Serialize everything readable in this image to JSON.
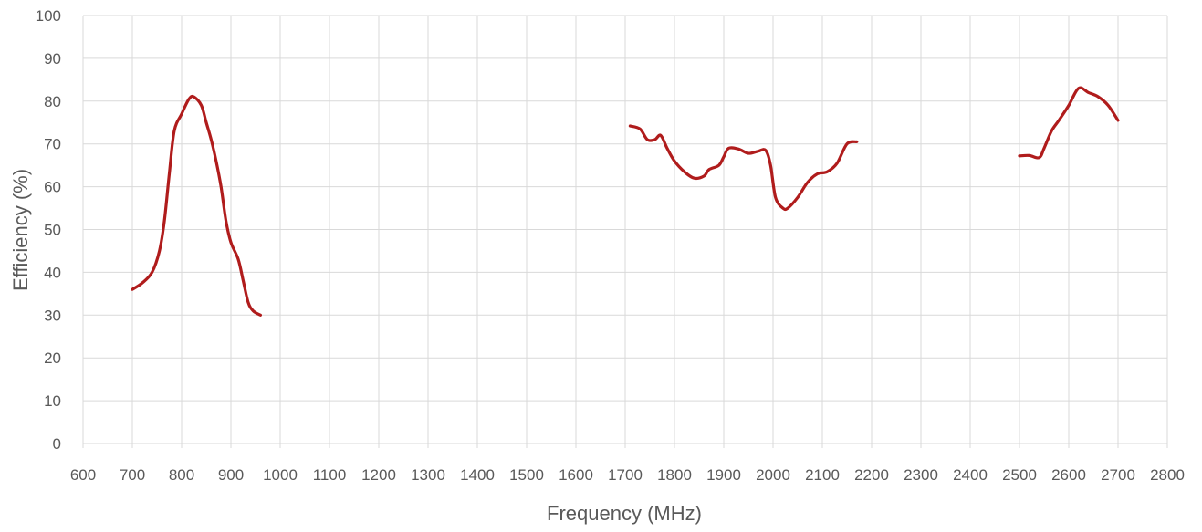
{
  "chart_data": {
    "type": "line",
    "title": "",
    "xlabel": "Frequency (MHz)",
    "ylabel": "Efficiency (%)",
    "xlim": [
      600,
      2800
    ],
    "ylim": [
      0,
      100
    ],
    "x_ticks": [
      600,
      700,
      800,
      900,
      1000,
      1100,
      1200,
      1300,
      1400,
      1500,
      1600,
      1700,
      1800,
      1900,
      2000,
      2100,
      2200,
      2300,
      2400,
      2500,
      2600,
      2700,
      2800
    ],
    "y_ticks": [
      0,
      10,
      20,
      30,
      40,
      50,
      60,
      70,
      80,
      90,
      100
    ],
    "grid": true,
    "legend": "none",
    "line_color": "#b01c1c",
    "series": [
      {
        "segments": [
          [
            [
              700,
              36
            ],
            [
              720,
              37.5
            ],
            [
              740,
              40
            ],
            [
              755,
              45
            ],
            [
              765,
              52
            ],
            [
              775,
              63
            ],
            [
              785,
              73
            ],
            [
              800,
              77
            ],
            [
              815,
              80.5
            ],
            [
              825,
              81
            ],
            [
              840,
              79
            ],
            [
              850,
              75
            ],
            [
              860,
              71
            ],
            [
              870,
              66
            ],
            [
              880,
              60
            ],
            [
              890,
              52
            ],
            [
              900,
              47
            ],
            [
              915,
              43
            ],
            [
              925,
              38
            ],
            [
              935,
              33
            ],
            [
              945,
              31
            ],
            [
              960,
              30
            ]
          ],
          [
            [
              1710,
              74.2
            ],
            [
              1730,
              73.5
            ],
            [
              1745,
              71
            ],
            [
              1760,
              71
            ],
            [
              1772,
              72
            ],
            [
              1785,
              69
            ],
            [
              1800,
              66
            ],
            [
              1820,
              63.5
            ],
            [
              1840,
              62
            ],
            [
              1860,
              62.5
            ],
            [
              1870,
              64
            ],
            [
              1890,
              65
            ],
            [
              1900,
              67
            ],
            [
              1910,
              69
            ],
            [
              1930,
              68.8
            ],
            [
              1950,
              67.8
            ],
            [
              1970,
              68.3
            ],
            [
              1985,
              68.5
            ],
            [
              1995,
              65
            ],
            [
              2005,
              57.5
            ],
            [
              2020,
              55
            ],
            [
              2030,
              55
            ],
            [
              2050,
              57.5
            ],
            [
              2070,
              61
            ],
            [
              2090,
              63
            ],
            [
              2110,
              63.5
            ],
            [
              2130,
              65.5
            ],
            [
              2150,
              70
            ],
            [
              2170,
              70.5
            ]
          ],
          [
            [
              2500,
              67.2
            ],
            [
              2520,
              67.3
            ],
            [
              2540,
              66.8
            ],
            [
              2550,
              69
            ],
            [
              2565,
              73
            ],
            [
              2580,
              75.5
            ],
            [
              2600,
              79
            ],
            [
              2620,
              83
            ],
            [
              2640,
              82
            ],
            [
              2660,
              81
            ],
            [
              2680,
              79
            ],
            [
              2700,
              75.5
            ]
          ]
        ]
      }
    ]
  }
}
